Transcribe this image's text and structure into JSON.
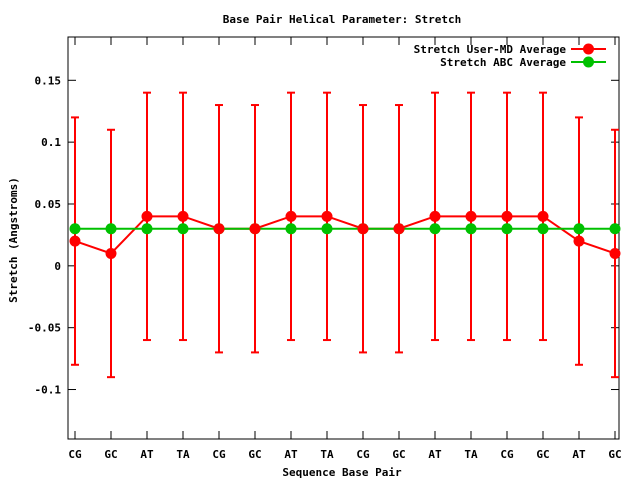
{
  "chart_data": {
    "type": "line",
    "title": "Base Pair Helical Parameter: Stretch",
    "xlabel": "Sequence Base Pair",
    "ylabel": "Stretch (Angstroms)",
    "categories": [
      "CG",
      "GC",
      "AT",
      "TA",
      "CG",
      "GC",
      "AT",
      "TA",
      "CG",
      "GC",
      "AT",
      "TA",
      "CG",
      "GC",
      "AT",
      "GC"
    ],
    "ylim": [
      -0.14,
      0.185
    ],
    "yticks": [
      -0.1,
      -0.05,
      0,
      0.05,
      0.1,
      0.15
    ],
    "ytick_labels": [
      "-0.1",
      "-0.05",
      "0",
      "0.05",
      "0.1",
      "0.15"
    ],
    "grid": false,
    "legend_position": "top-right",
    "series": [
      {
        "name": "Stretch User-MD Average",
        "color": "#ff0000",
        "values": [
          0.02,
          0.01,
          0.04,
          0.04,
          0.03,
          0.03,
          0.04,
          0.04,
          0.03,
          0.03,
          0.04,
          0.04,
          0.04,
          0.04,
          0.02,
          0.01
        ],
        "error_low": [
          -0.08,
          -0.09,
          -0.06,
          -0.06,
          -0.07,
          -0.07,
          -0.06,
          -0.06,
          -0.07,
          -0.07,
          -0.06,
          -0.06,
          -0.06,
          -0.06,
          -0.08,
          -0.09
        ],
        "error_high": [
          0.12,
          0.11,
          0.14,
          0.14,
          0.13,
          0.13,
          0.14,
          0.14,
          0.13,
          0.13,
          0.14,
          0.14,
          0.14,
          0.14,
          0.12,
          0.11
        ]
      },
      {
        "name": "Stretch ABC Average",
        "color": "#00c000",
        "values": [
          0.03,
          0.03,
          0.03,
          0.03,
          0.03,
          0.03,
          0.03,
          0.03,
          0.03,
          0.03,
          0.03,
          0.03,
          0.03,
          0.03,
          0.03,
          0.03
        ]
      }
    ]
  }
}
